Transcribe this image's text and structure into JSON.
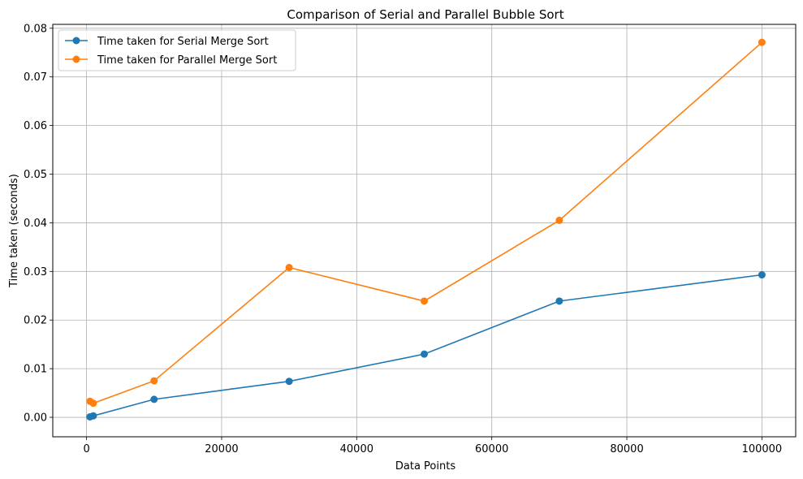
{
  "chart_data": {
    "type": "line",
    "title": "Comparison of Serial and Parallel Bubble Sort",
    "xlabel": "Data Points",
    "ylabel": "Time taken (seconds)",
    "xlim": [
      -5000,
      105000
    ],
    "ylim": [
      -0.004,
      0.0808
    ],
    "xticks": [
      0,
      20000,
      40000,
      60000,
      80000,
      100000
    ],
    "yticks": [
      0.0,
      0.01,
      0.02,
      0.03,
      0.04,
      0.05,
      0.06,
      0.07,
      0.08
    ],
    "xtick_labels": [
      "0",
      "20000",
      "40000",
      "60000",
      "80000",
      "100000"
    ],
    "ytick_labels": [
      "0.00",
      "0.01",
      "0.02",
      "0.03",
      "0.04",
      "0.05",
      "0.06",
      "0.07",
      "0.08"
    ],
    "grid": true,
    "legend_position": "top-left",
    "x": [
      500,
      1000,
      10000,
      30000,
      50000,
      70000,
      100000
    ],
    "series": [
      {
        "name": "Time taken for Serial Merge Sort",
        "color": "#1f77b4",
        "values": [
          0.0001,
          0.0003,
          0.0037,
          0.0074,
          0.013,
          0.0239,
          0.0293
        ]
      },
      {
        "name": "Time taken for Parallel Merge Sort",
        "color": "#ff7f0e",
        "values": [
          0.0033,
          0.0029,
          0.0075,
          0.0308,
          0.0239,
          0.0405,
          0.0771
        ]
      }
    ]
  }
}
